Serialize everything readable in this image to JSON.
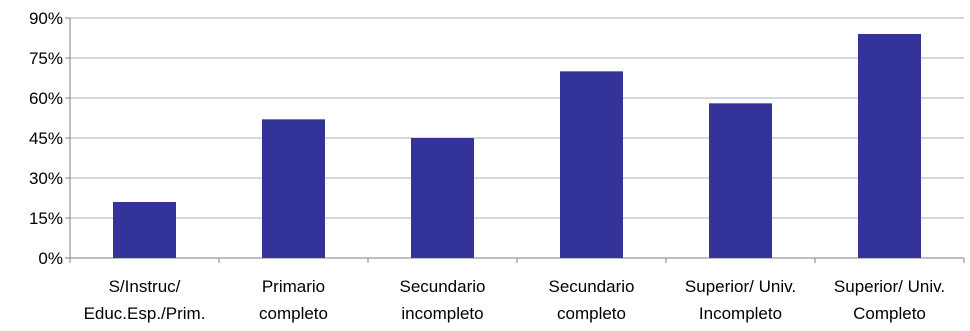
{
  "chart_data": {
    "type": "bar",
    "categories": [
      [
        "S/Instruc/",
        "Educ.Esp./Prim."
      ],
      [
        "Primario",
        "completo"
      ],
      [
        "Secundario",
        "incompleto"
      ],
      [
        "Secundario",
        "completo"
      ],
      [
        "Superior/ Univ.",
        "Incompleto"
      ],
      [
        "Superior/ Univ.",
        "Completo"
      ]
    ],
    "values": [
      21,
      52,
      45,
      70,
      58,
      84
    ],
    "y_ticks": [
      "0%",
      "15%",
      "30%",
      "45%",
      "60%",
      "75%",
      "90%"
    ],
    "ylim": [
      0,
      90
    ],
    "grid": true,
    "bar_color": "#333399",
    "title": "",
    "xlabel": "",
    "ylabel": ""
  }
}
